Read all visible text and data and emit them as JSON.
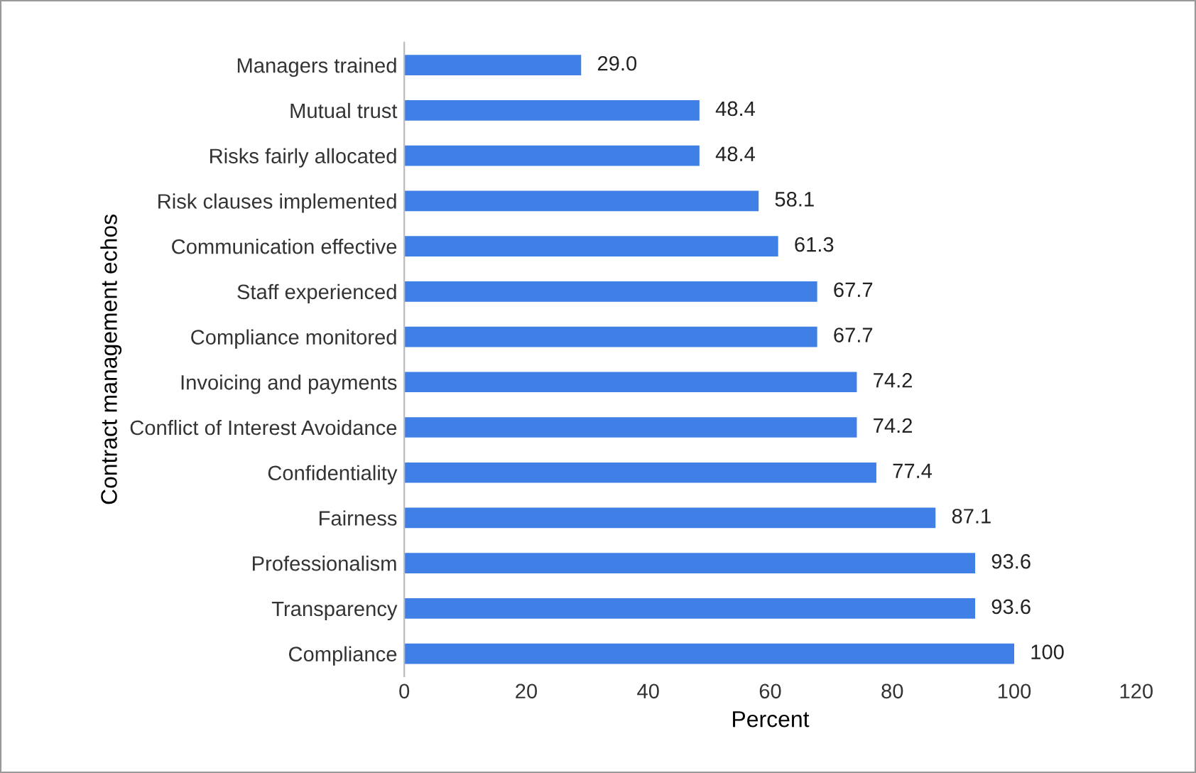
{
  "chart_data": {
    "type": "bar",
    "orientation": "horizontal",
    "xlabel": "Percent",
    "ylabel": "Contract management echos",
    "categories": [
      "Managers trained",
      "Mutual trust",
      "Risks fairly allocated",
      "Risk clauses implemented",
      "Communication effective",
      "Staff experienced",
      "Compliance monitored",
      "Invoicing and payments",
      "Conflict of Interest Avoidance",
      "Confidentiality",
      "Fairness",
      "Professionalism",
      "Transparency",
      "Compliance"
    ],
    "values": [
      29.0,
      48.4,
      48.4,
      58.1,
      61.3,
      67.7,
      67.7,
      74.2,
      74.2,
      77.4,
      87.1,
      93.6,
      93.6,
      100
    ],
    "value_labels": [
      "29.0",
      "48.4",
      "48.4",
      "58.1",
      "61.3",
      "67.7",
      "67.7",
      "74.2",
      "74.2",
      "77.4",
      "87.1",
      "93.6",
      "93.6",
      "100"
    ],
    "color": "#3f7fe6",
    "xlim": [
      0,
      120
    ],
    "xticks": [
      0,
      20,
      40,
      60,
      80,
      100,
      120
    ],
    "grid": false,
    "legend": false
  }
}
